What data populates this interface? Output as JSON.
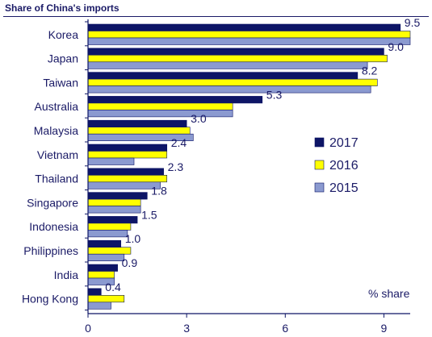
{
  "chart_data": {
    "type": "bar",
    "orientation": "horizontal",
    "title": "Share of China's imports",
    "unit_label": "% share",
    "categories": [
      "Korea",
      "Japan",
      "Taiwan",
      "Australia",
      "Malaysia",
      "Vietnam",
      "Thailand",
      "Singapore",
      "Indonesia",
      "Philippines",
      "India",
      "Hong Kong"
    ],
    "data_labels": [
      "9.5",
      "9.0",
      "8.2",
      "5.3",
      "3.0",
      "2.4",
      "2.3",
      "1.8",
      "1.5",
      "1.0",
      "0.9",
      "0.4"
    ],
    "series": [
      {
        "name": "2017",
        "color": "#0d1566",
        "values": [
          9.5,
          9.0,
          8.2,
          5.3,
          3.0,
          2.4,
          2.3,
          1.8,
          1.5,
          1.0,
          0.9,
          0.4
        ]
      },
      {
        "name": "2016",
        "color": "#ffff00",
        "values": [
          9.8,
          9.1,
          8.8,
          4.4,
          3.1,
          2.4,
          2.4,
          1.6,
          1.3,
          1.3,
          0.8,
          1.1
        ]
      },
      {
        "name": "2015",
        "color": "#8b9ad0",
        "values": [
          9.8,
          8.5,
          8.6,
          4.4,
          3.2,
          1.4,
          2.2,
          1.6,
          1.2,
          1.1,
          0.8,
          0.7
        ]
      }
    ],
    "xlim": [
      0,
      9.8
    ],
    "xticks": [
      0,
      3,
      6,
      9
    ],
    "legend_position": "right-middle",
    "grid": false
  }
}
